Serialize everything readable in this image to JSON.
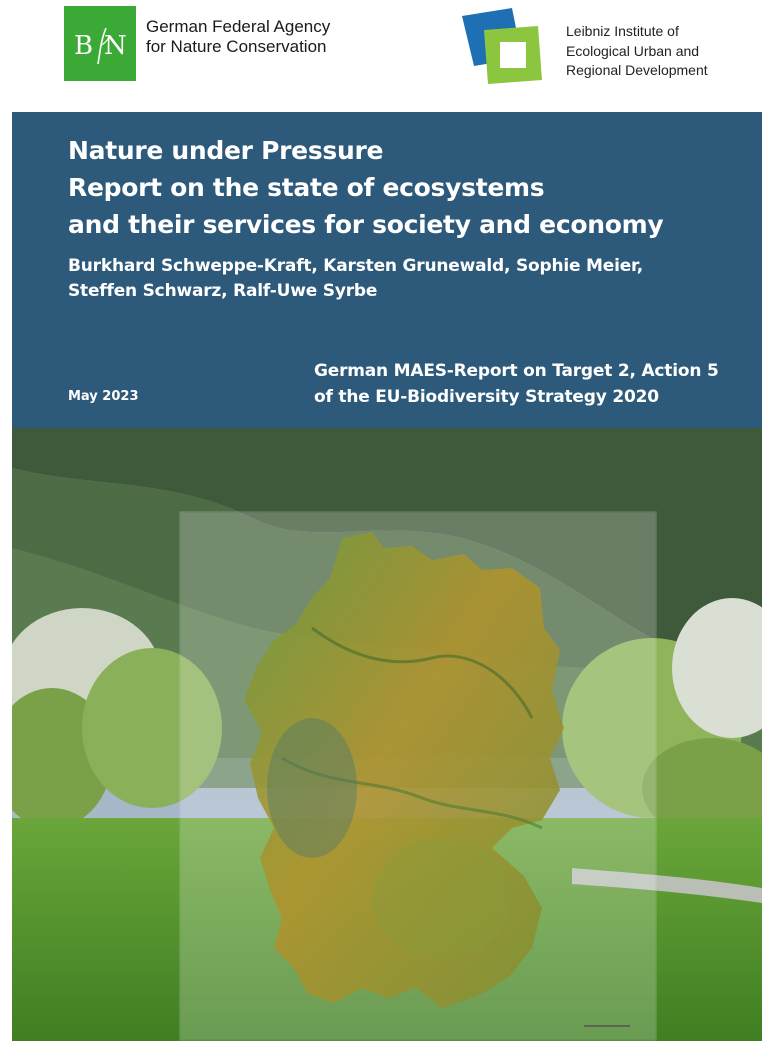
{
  "logos": {
    "bfn": {
      "icon": "bfn-logo-icon",
      "name_lines": [
        "German Federal Agency",
        "for Nature Conservation"
      ]
    },
    "ioer": {
      "icon": "ioer-logo-icon",
      "name_lines": [
        "Leibniz Institute of",
        "Ecological Urban and",
        "Regional Development"
      ]
    }
  },
  "report": {
    "title_lines": [
      "Nature under Pressure",
      "Report on the state of ecosystems",
      "and their services for society and economy"
    ],
    "author_lines": [
      "Burkhard Schweppe-Kraft, Karsten Grunewald, Sophie Meier,",
      "Steffen Schwarz, Ralf-Uwe Syrbe"
    ],
    "date": "May 2023",
    "series_lines": [
      "German MAES-Report on Target 2, Action 5",
      "of the EU-Biodiversity Strategy 2020"
    ]
  },
  "colors": {
    "title_panel": "#2d5a7b",
    "bfn_green": "#3aa935",
    "ioer_blue": "#1f6fb4",
    "ioer_green": "#8cc63f"
  }
}
